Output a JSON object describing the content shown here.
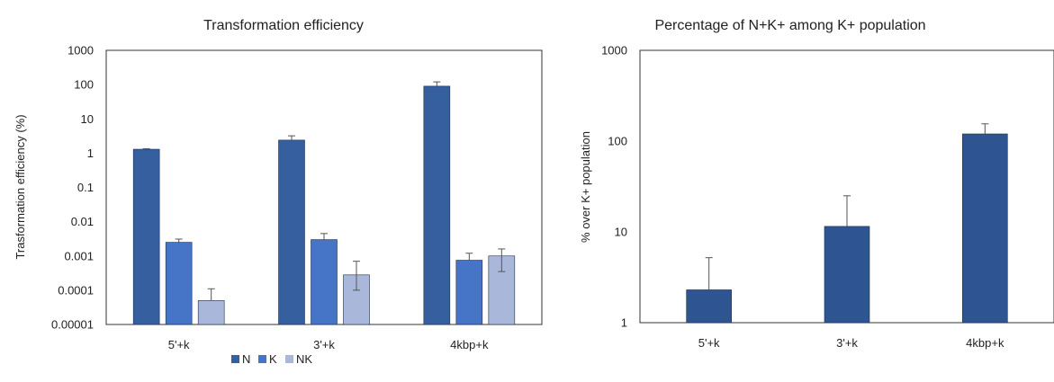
{
  "chart_data": [
    {
      "type": "bar",
      "title": "Transformation efficiency",
      "xlabel": "",
      "ylabel": "Trasformation efficiency (%)",
      "yscale": "log",
      "ylim": [
        1e-05,
        1000
      ],
      "yticks": [
        "1000",
        "100",
        "10",
        "1",
        "0.1",
        "0.01",
        "0.001",
        "0.0001",
        "0.00001"
      ],
      "categories": [
        "5'+k",
        "3'+k",
        "4kbp+k"
      ],
      "series": [
        {
          "name": "N",
          "color": "#355f9f",
          "values": [
            1.3,
            2.4,
            90
          ],
          "err_upper": [
            1.35,
            3.2,
            120
          ]
        },
        {
          "name": "K",
          "color": "#4674c6",
          "values": [
            0.0025,
            0.003,
            0.00075
          ],
          "err_upper": [
            0.0031,
            0.0045,
            0.0012
          ]
        },
        {
          "name": "NK",
          "color": "#a9b7db",
          "values": [
            5e-05,
            0.00028,
            0.001
          ],
          "err_upper": [
            0.00011,
            0.0007,
            0.0016
          ],
          "err_lower": [
            null,
            0.0001,
            0.00035
          ]
        }
      ],
      "legend_position": "bottom",
      "grid": false
    },
    {
      "type": "bar",
      "title": "Percentage of N+K+ among K+ population",
      "xlabel": "",
      "ylabel": "% over K+ population",
      "yscale": "log",
      "ylim": [
        1,
        1000
      ],
      "yticks": [
        "1000",
        "100",
        "10",
        "1"
      ],
      "categories": [
        "5'+k",
        "3'+k",
        "4kbp+k"
      ],
      "series": [
        {
          "color": "#2e5592",
          "values": [
            2.3,
            11.5,
            120
          ],
          "err_upper": [
            5.2,
            25,
            155
          ]
        }
      ],
      "grid": false
    }
  ]
}
